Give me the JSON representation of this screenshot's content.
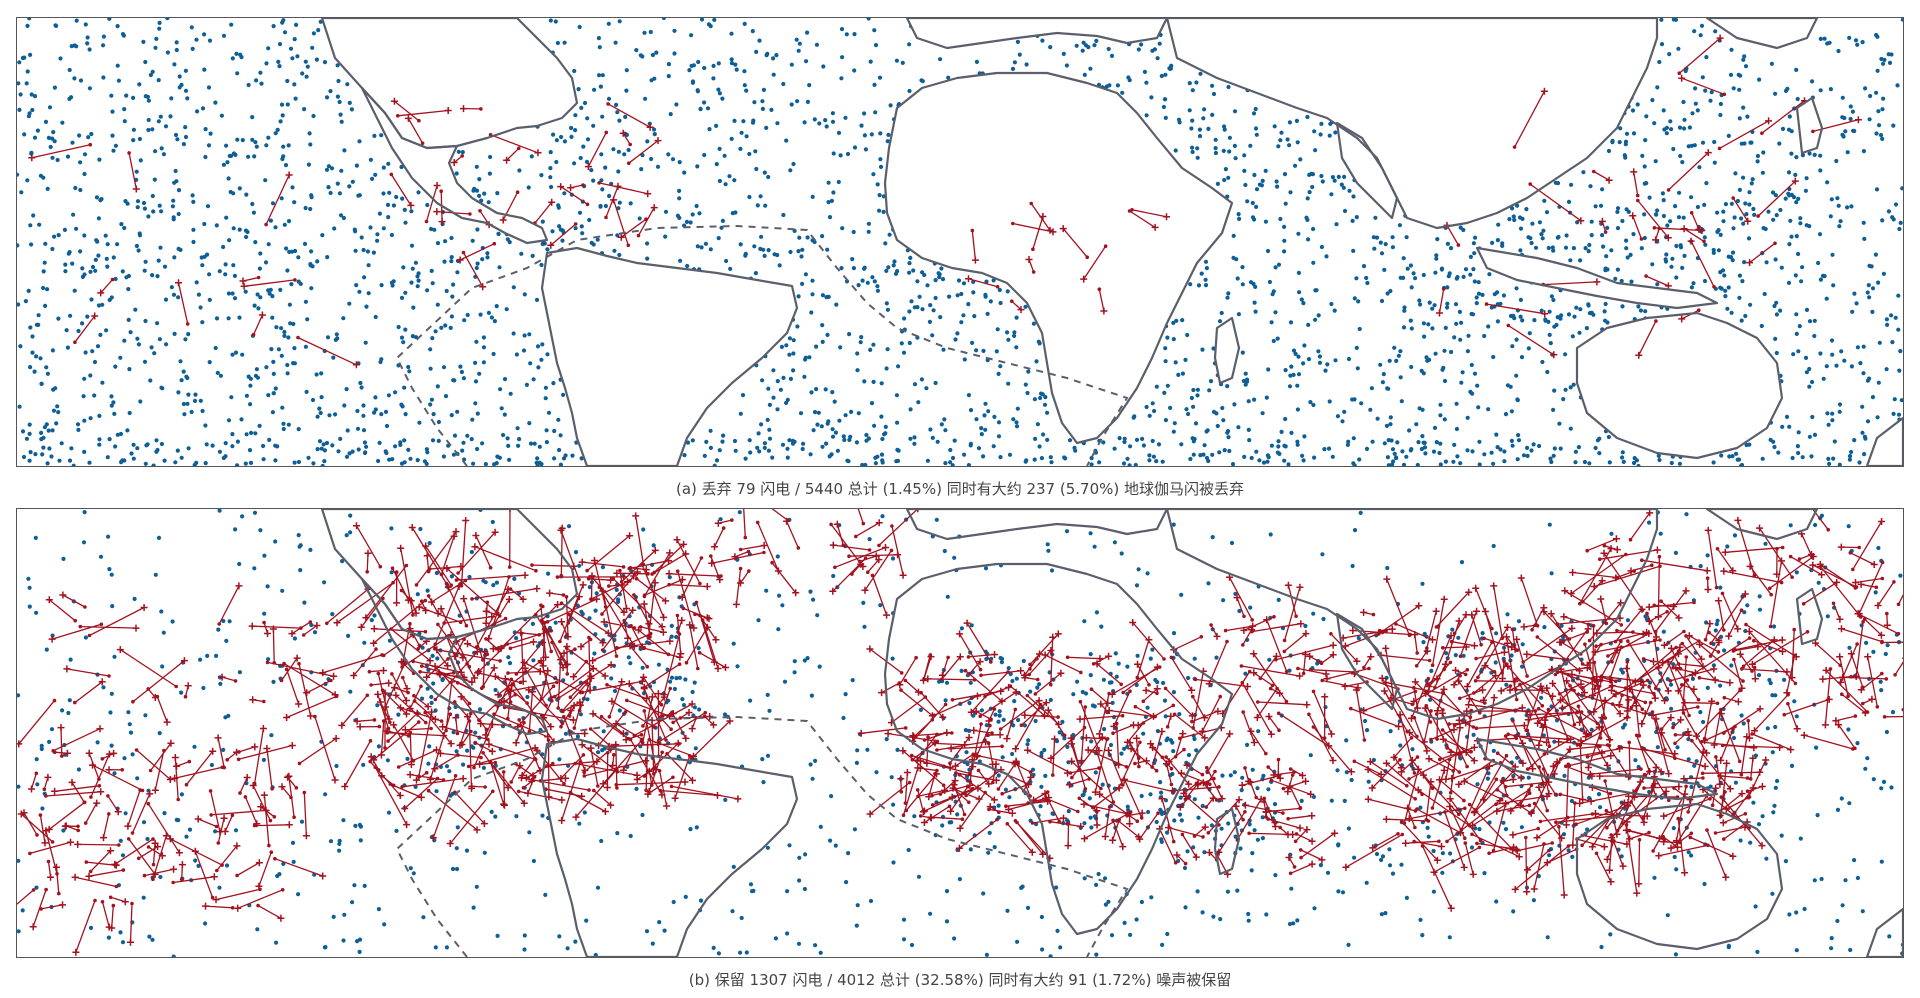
{
  "colors": {
    "background": "#ffffff",
    "frame": "#555555",
    "coastline": "#5a5f6b",
    "noise_dots": "#0e5f96",
    "lightning_tracks": "#a3121f",
    "caption_text": "#444444"
  },
  "panels": [
    {
      "id": "a",
      "caption": "(a) 丢弃 79 闪电 / 5440 总计 (1.45%) 同时有大约 237 (5.70%) 地球伽马闪被丢弃",
      "dropped_flashes": 79,
      "total": 5440,
      "dropped_percent": "1.45%",
      "tgf_count": 237,
      "tgf_percent": "5.70%"
    },
    {
      "id": "b",
      "caption": "(b) 保留 1307 闪电 / 4012 总计 (32.58%) 同时有大约 91 (1.72%) 噪声被保留",
      "kept_flashes": 1307,
      "total": 4012,
      "kept_percent": "32.58%",
      "noise_count": 91,
      "noise_percent": "1.72%"
    }
  ],
  "chart_data": [
    {
      "type": "scatter",
      "panel": "a",
      "title": "",
      "xlabel": "",
      "ylabel": "",
      "grid": false,
      "series_description_counts": {
        "noise_points_approx": 2800,
        "flash_tracks_approx": 79
      },
      "flash_tracks_regions": [
        "Caribbean / Gulf of Mexico",
        "Central Africa",
        "Maritime Continent",
        "Pacific"
      ]
    },
    {
      "type": "scatter",
      "panel": "b",
      "title": "",
      "xlabel": "",
      "ylabel": "",
      "grid": false,
      "series_description_counts": {
        "noise_points_approx": 1400,
        "flash_tracks_approx": 1307
      },
      "flash_tracks_regions": [
        "Central America / Caribbean",
        "Central Africa",
        "Maritime Continent",
        "South Pacific"
      ]
    }
  ]
}
